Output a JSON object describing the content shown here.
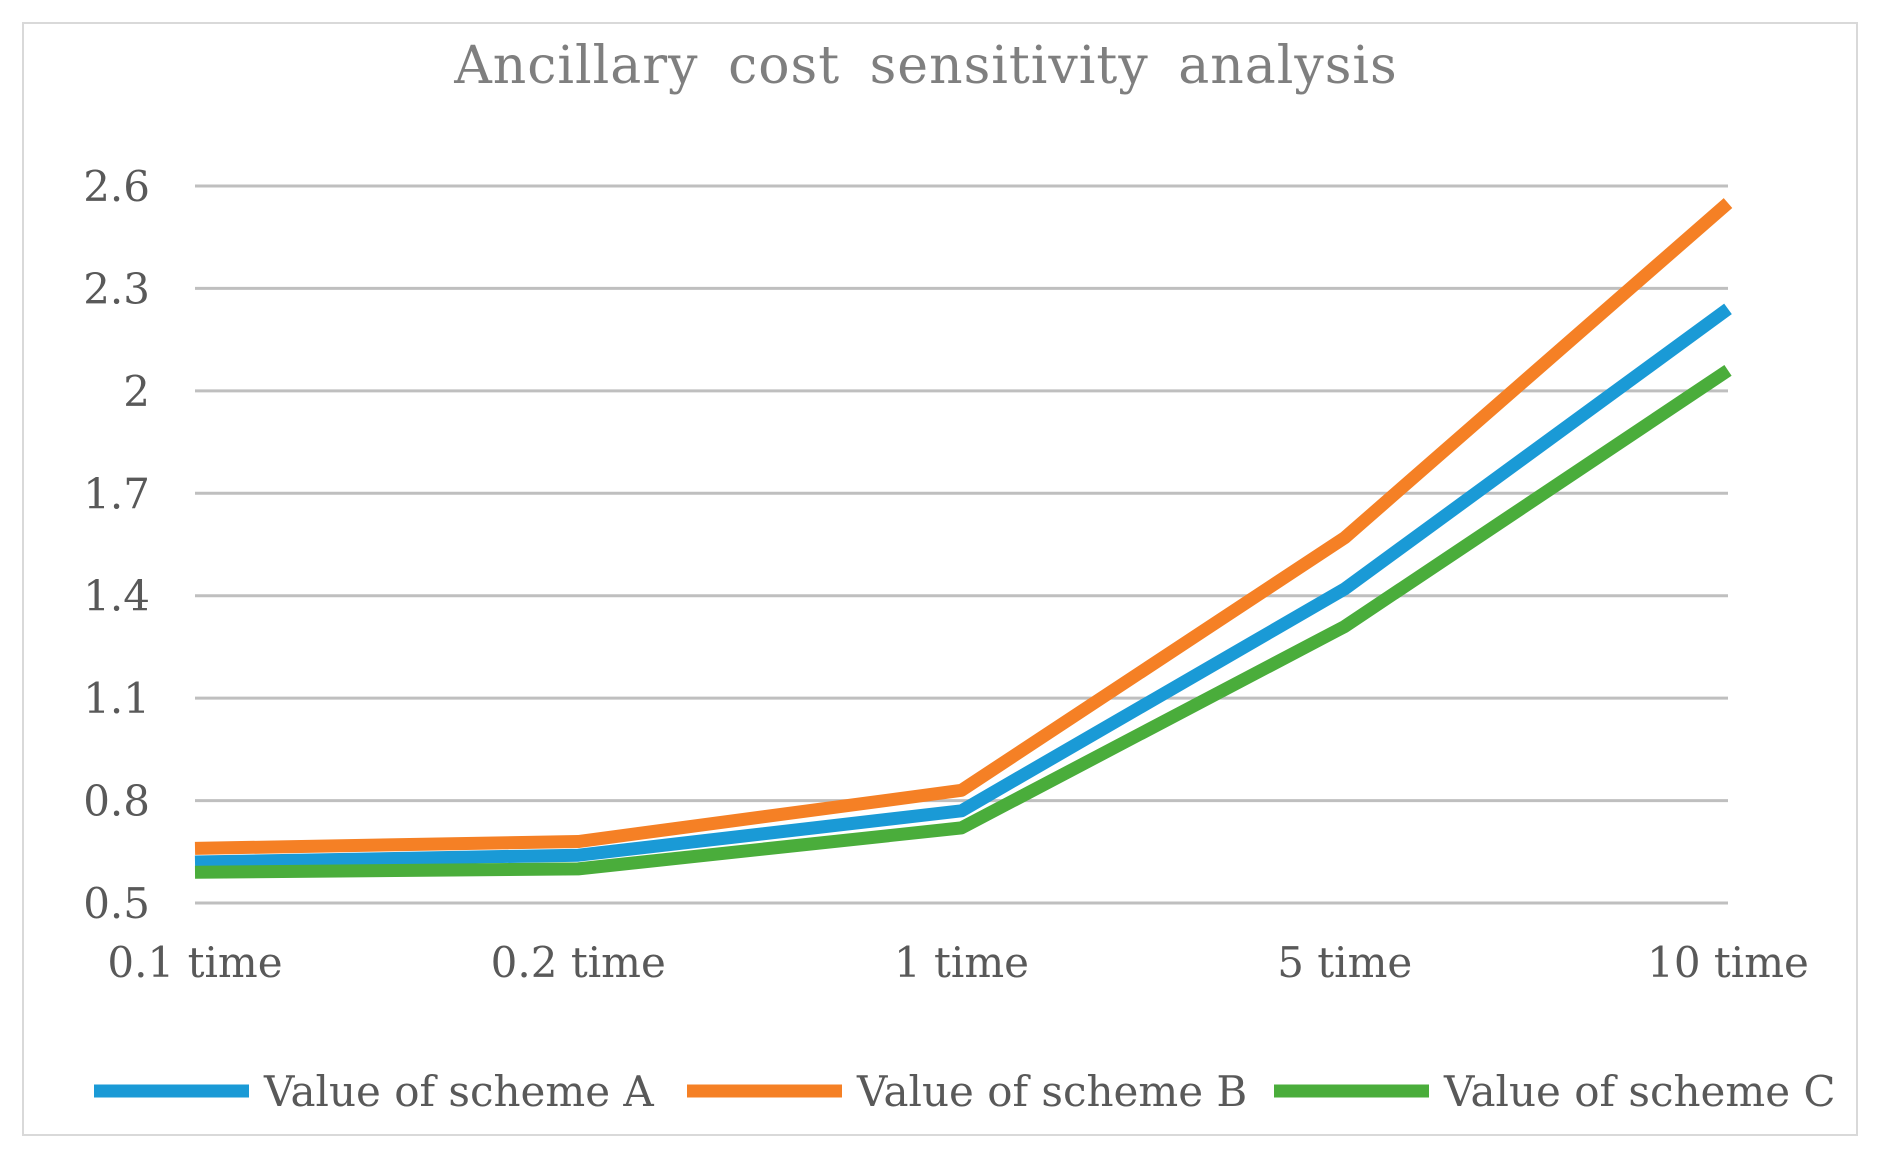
{
  "chart_data": {
    "type": "line",
    "title": "Ancillary cost sensitivity analysis",
    "xlabel": "",
    "ylabel": "",
    "categories": [
      "0.1 time",
      "0.2 time",
      "1 time",
      "5 time",
      "10 time"
    ],
    "ylim": [
      0.5,
      2.6
    ],
    "yticks": [
      "0.5",
      "0.8",
      "1.1",
      "1.4",
      "1.7",
      "2",
      "2.3",
      "2.6"
    ],
    "grid": true,
    "legend_position": "bottom",
    "series": [
      {
        "name": "Value of scheme A",
        "color": "#1a9ad6",
        "values": [
          0.62,
          0.64,
          0.77,
          1.42,
          2.24
        ]
      },
      {
        "name": "Value of scheme B",
        "color": "#f58025",
        "values": [
          0.66,
          0.68,
          0.83,
          1.57,
          2.55
        ]
      },
      {
        "name": "Value of scheme C",
        "color": "#4aad3b",
        "values": [
          0.59,
          0.6,
          0.72,
          1.31,
          2.06
        ]
      }
    ]
  }
}
